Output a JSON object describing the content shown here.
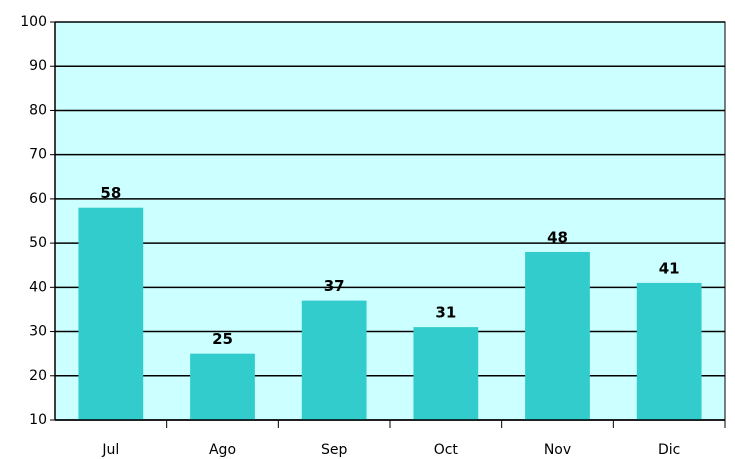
{
  "chart_data": {
    "type": "bar",
    "categories": [
      "Jul",
      "Ago",
      "Sep",
      "Oct",
      "Nov",
      "Dic"
    ],
    "values": [
      58,
      25,
      37,
      31,
      48,
      41
    ],
    "color": "#33cccc",
    "background": "#ccffff",
    "ylim": [
      10,
      100
    ],
    "yticks": [
      10,
      20,
      30,
      40,
      50,
      60,
      70,
      80,
      90,
      100
    ],
    "grid": true,
    "data_labels": true
  }
}
